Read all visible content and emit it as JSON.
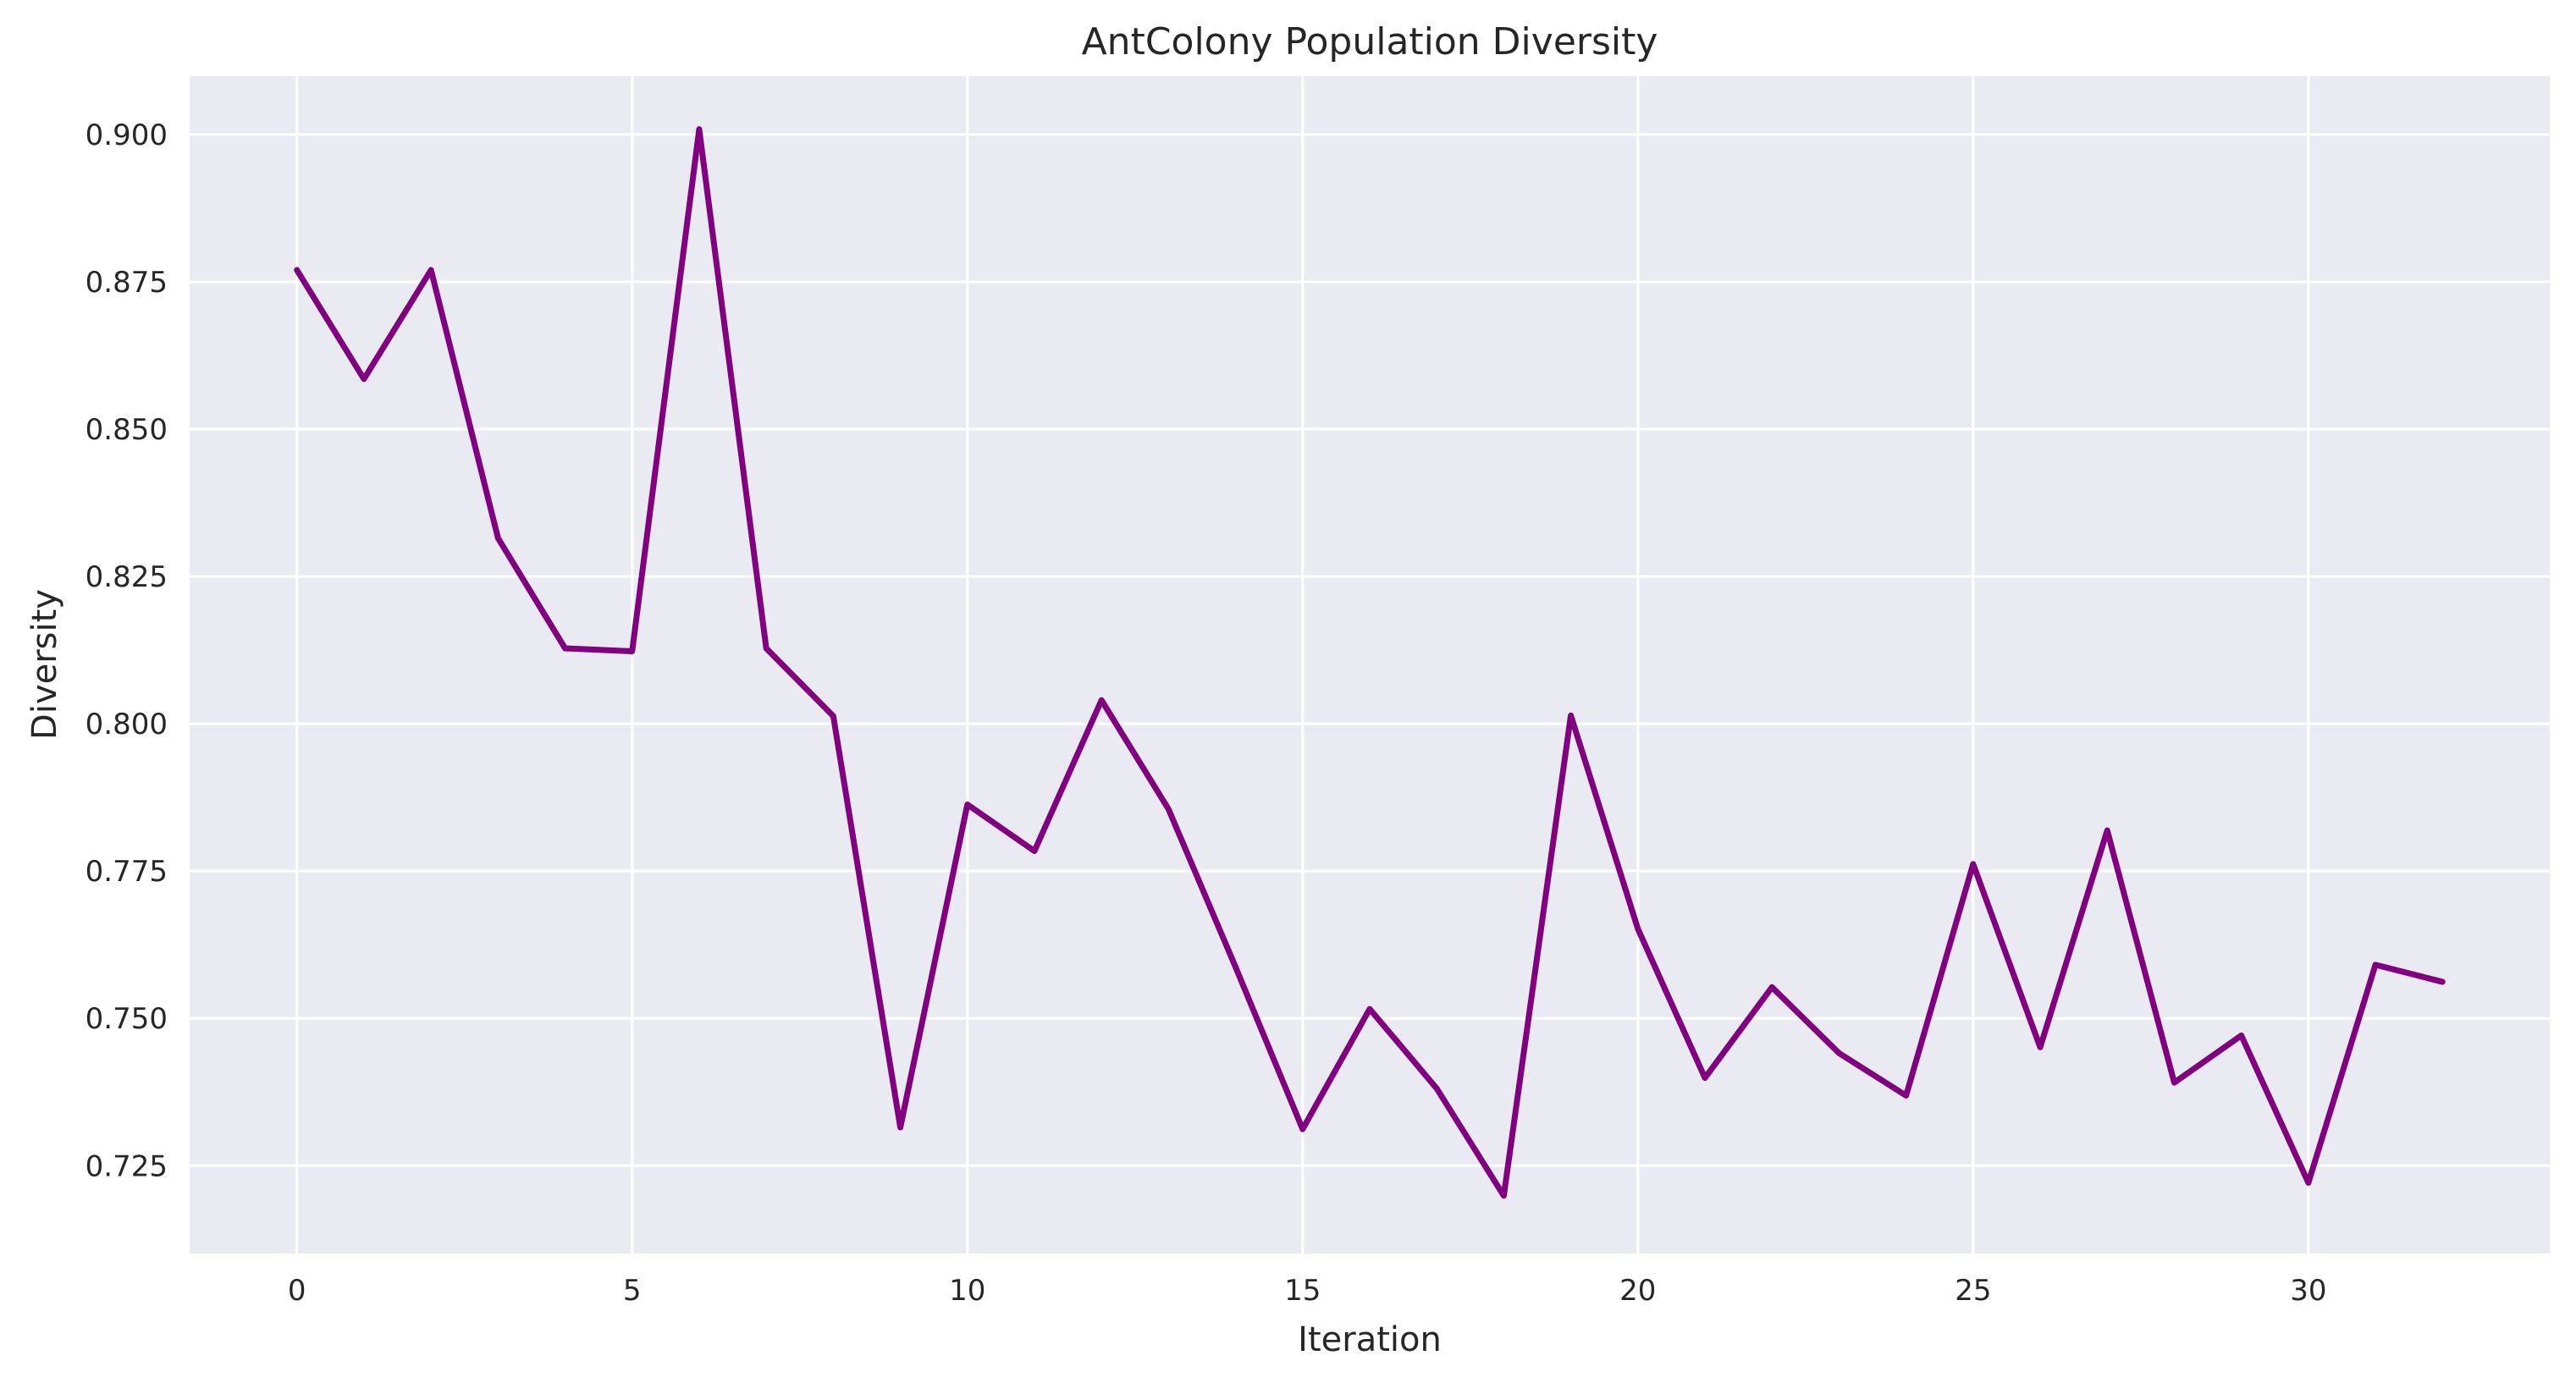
{
  "chart_data": {
    "type": "line",
    "title": "AntColony Population Diversity",
    "xlabel": "Iteration",
    "ylabel": "Diversity",
    "xlim": [
      -1.6,
      33.6
    ],
    "ylim": [
      0.7101,
      0.9099
    ],
    "xticks": [
      0,
      5,
      10,
      15,
      20,
      25,
      30
    ],
    "yticks": [
      0.725,
      0.75,
      0.775,
      0.8,
      0.825,
      0.85,
      0.875,
      0.9
    ],
    "ytick_labels": [
      "0.725",
      "0.750",
      "0.775",
      "0.800",
      "0.825",
      "0.850",
      "0.875",
      "0.900"
    ],
    "grid": true,
    "background_color": "#eaeaf2",
    "line_color": "#800080",
    "series": [
      {
        "x": [
          0,
          1,
          2,
          3,
          4,
          5,
          6,
          7,
          8,
          9,
          10,
          11,
          12,
          13,
          14,
          15,
          16,
          17,
          18,
          19,
          20,
          21,
          22,
          23,
          24,
          25,
          26,
          27,
          28,
          29,
          30,
          31,
          32
        ],
        "values": [
          0.877,
          0.8585,
          0.877,
          0.8315,
          0.8128,
          0.8123,
          0.9009,
          0.8128,
          0.8013,
          0.7315,
          0.7863,
          0.7784,
          0.804,
          0.7855,
          0.7587,
          0.7312,
          0.7516,
          0.7381,
          0.7199,
          0.8014,
          0.7652,
          0.7399,
          0.7553,
          0.7441,
          0.7369,
          0.7762,
          0.7451,
          0.7819,
          0.7391,
          0.7471,
          0.7221,
          0.7591,
          0.7562
        ]
      }
    ]
  }
}
